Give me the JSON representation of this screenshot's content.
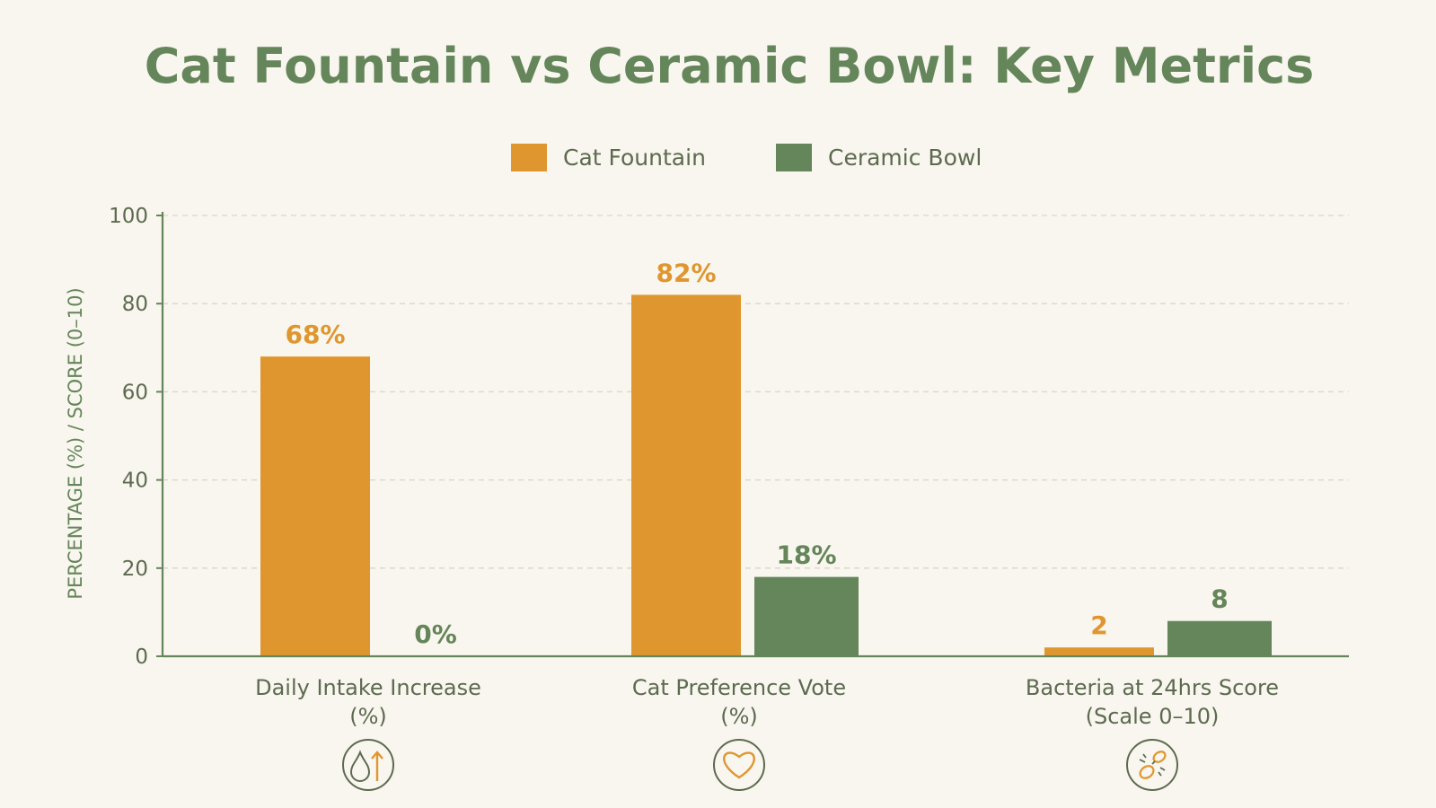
{
  "chart_data": {
    "type": "bar",
    "title": "Cat Fountain  vs Ceramic Bowl: Key Metrics",
    "ylabel": "PERCENTAGE (%) / SCORE (0–10)",
    "xlabel": "",
    "ylim": [
      0,
      100
    ],
    "yticks": [
      0,
      20,
      40,
      60,
      80,
      100
    ],
    "grid": true,
    "legend_position": "top-center",
    "categories": [
      {
        "line1": "Daily Intake Increase",
        "line2": "(%)",
        "icon": "water-drop-up-arrow-icon"
      },
      {
        "line1": "Cat Preference Vote",
        "line2": "(%)",
        "icon": "heart-icon"
      },
      {
        "line1": "Bacteria at 24hrs Score",
        "line2": "(Scale 0–10)",
        "icon": "bacteria-icon"
      }
    ],
    "series": [
      {
        "name": "Cat Fountain",
        "color": "#e0962f",
        "values": [
          68,
          82,
          2
        ],
        "labels": [
          "68%",
          "82%",
          "2"
        ]
      },
      {
        "name": "Ceramic Bowl",
        "color": "#65855a",
        "values": [
          0,
          18,
          8
        ],
        "labels": [
          "0%",
          "18%",
          "8"
        ]
      }
    ]
  },
  "colors": {
    "background": "#f8f6ee",
    "title": "#65855a",
    "axis": "#65855a",
    "grid": "#d9d5c8",
    "text": "#5d6a50",
    "icon_stroke": "#5d6a50"
  }
}
